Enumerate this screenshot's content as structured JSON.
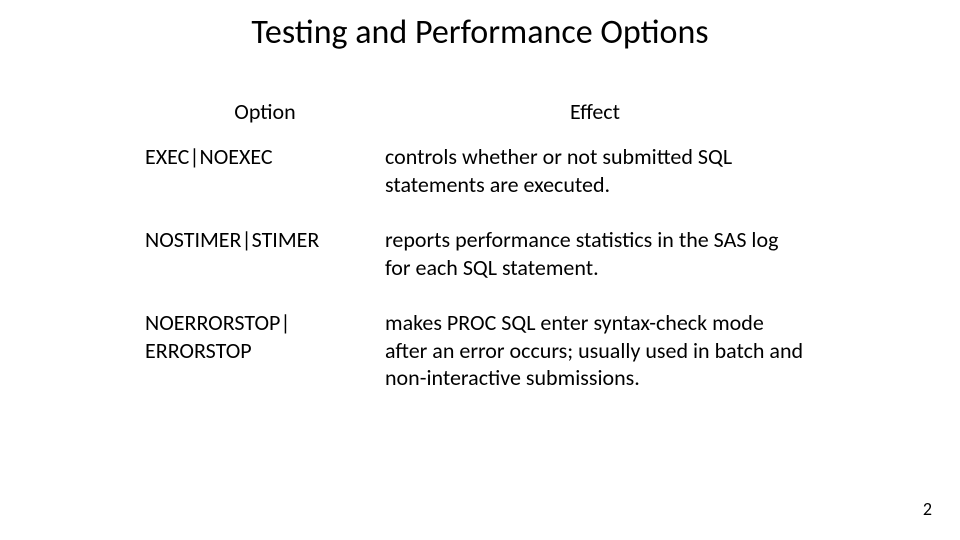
{
  "title": "Testing and Performance Options",
  "headers": {
    "option": "Option",
    "effect": "Effect"
  },
  "rows": [
    {
      "option": "EXEC|NOEXEC",
      "effect": "controls whether or not submitted SQL statements are executed."
    },
    {
      "option": "NOSTIMER|STIMER",
      "effect": "reports performance statistics in the SAS log for each SQL statement."
    },
    {
      "option": "NOERRORSTOP|\nERRORSTOP",
      "effect": "makes PROC SQL enter syntax-check mode after an error occurs; usually used in batch and non-interactive submissions."
    }
  ],
  "page_number": "2",
  "style": {
    "background_color": "#ffffff",
    "text_color": "#000000",
    "title_fontsize": 34,
    "header_fontsize": 22,
    "body_fontsize": 22,
    "font_family": "Calibri"
  }
}
